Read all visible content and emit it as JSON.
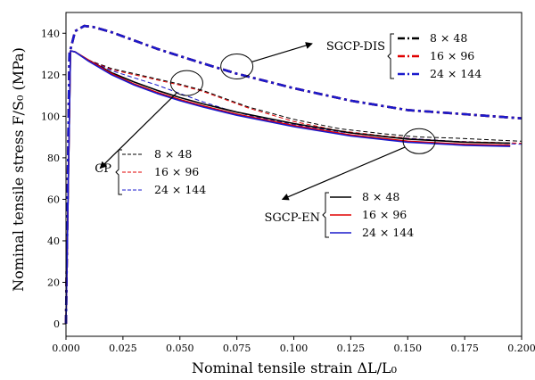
{
  "chart_data": {
    "type": "line",
    "xlabel": "Nominal tensile strain ΔL/L₀",
    "ylabel": "Nominal tensile stress F/S₀ (MPa)",
    "xlim": [
      0.0,
      0.2
    ],
    "ylim": [
      -6,
      150
    ],
    "x_ticks": [
      "0.000",
      "0.025",
      "0.050",
      "0.075",
      "0.100",
      "0.125",
      "0.150",
      "0.175",
      "0.200"
    ],
    "y_ticks": [
      "0",
      "20",
      "40",
      "60",
      "80",
      "100",
      "120",
      "140"
    ],
    "grid": false,
    "groups": [
      {
        "label": "SGCP-DIS",
        "linestyle": "dashdot"
      },
      {
        "label": "CP",
        "linestyle": "dashed"
      },
      {
        "label": "SGCP-EN",
        "linestyle": "solid"
      }
    ],
    "series": [
      {
        "name": "8 × 48",
        "group": "SGCP-DIS",
        "color": "#000000",
        "x": [
          0,
          0.0015,
          0.004,
          0.008,
          0.012,
          0.02,
          0.03,
          0.04,
          0.05,
          0.06,
          0.075,
          0.1,
          0.125,
          0.15,
          0.175,
          0.2
        ],
        "y": [
          0,
          130,
          141,
          143.5,
          143,
          140.5,
          136.5,
          132.5,
          129,
          125.5,
          120.5,
          113.5,
          107.5,
          103,
          101,
          99
        ]
      },
      {
        "name": "16 × 96",
        "group": "SGCP-DIS",
        "color": "#e00000",
        "x": [
          0,
          0.0015,
          0.004,
          0.008,
          0.012,
          0.02,
          0.03,
          0.04,
          0.05,
          0.06,
          0.075,
          0.1,
          0.125,
          0.15,
          0.175,
          0.2
        ],
        "y": [
          0,
          130,
          141,
          143.5,
          143,
          140.5,
          136.5,
          132.5,
          129,
          125.5,
          120.5,
          113.5,
          107.5,
          103,
          101,
          99
        ]
      },
      {
        "name": "24 × 144",
        "group": "SGCP-DIS",
        "color": "#1a1acc",
        "x": [
          0,
          0.0015,
          0.004,
          0.008,
          0.012,
          0.02,
          0.03,
          0.04,
          0.05,
          0.06,
          0.075,
          0.1,
          0.125,
          0.15,
          0.175,
          0.2
        ],
        "y": [
          0,
          130,
          141,
          143.5,
          143,
          140.5,
          136.5,
          132.5,
          129,
          125.5,
          120.5,
          113.5,
          107.5,
          103,
          101,
          99
        ]
      },
      {
        "name": "8 × 48",
        "group": "CP",
        "color": "#000000",
        "x": [
          0,
          0.002,
          0.004,
          0.01,
          0.02,
          0.03,
          0.04,
          0.05,
          0.06,
          0.07,
          0.08,
          0.1,
          0.12,
          0.14,
          0.155,
          0.17,
          0.2
        ],
        "y": [
          0,
          131.5,
          131,
          127,
          123,
          120.5,
          118,
          115.5,
          112.5,
          108.5,
          104.5,
          98.5,
          94,
          91.5,
          90,
          89.5,
          88
        ]
      },
      {
        "name": "16 × 96",
        "group": "CP",
        "color": "#e00000",
        "x": [
          0,
          0.002,
          0.004,
          0.01,
          0.02,
          0.03,
          0.04,
          0.05,
          0.06,
          0.07,
          0.08,
          0.1,
          0.12,
          0.14,
          0.155,
          0.17,
          0.2
        ],
        "y": [
          0,
          131.5,
          131,
          127,
          122.5,
          120,
          117.5,
          115,
          112,
          108,
          104,
          97.5,
          93,
          90.5,
          89,
          88,
          87
        ]
      },
      {
        "name": "24 × 144",
        "group": "CP",
        "color": "#1a1acc",
        "x": [
          0,
          0.002,
          0.004,
          0.01,
          0.02,
          0.03,
          0.04,
          0.05,
          0.06,
          0.07,
          0.08,
          0.1,
          0.12,
          0.14,
          0.155,
          0.17,
          0.2
        ],
        "y": [
          0,
          131.5,
          131,
          127,
          122,
          118.5,
          115,
          111,
          107,
          103.5,
          100.5,
          96,
          92.5,
          90,
          89,
          88,
          86.5
        ]
      },
      {
        "name": "8 × 48",
        "group": "SGCP-EN",
        "color": "#000000",
        "x": [
          0,
          0.002,
          0.004,
          0.01,
          0.02,
          0.03,
          0.04,
          0.05,
          0.06,
          0.075,
          0.1,
          0.125,
          0.15,
          0.175,
          0.195
        ],
        "y": [
          0,
          131.5,
          131,
          127,
          121,
          116.5,
          112.5,
          109,
          106,
          102,
          96.5,
          92,
          89,
          87.5,
          87
        ]
      },
      {
        "name": "16 × 96",
        "group": "SGCP-EN",
        "color": "#e00000",
        "x": [
          0,
          0.002,
          0.004,
          0.01,
          0.02,
          0.03,
          0.04,
          0.05,
          0.06,
          0.075,
          0.1,
          0.125,
          0.15,
          0.175,
          0.195
        ],
        "y": [
          0,
          131.5,
          131,
          127,
          120.5,
          115.5,
          111.5,
          108,
          105,
          101,
          95.5,
          91,
          88,
          86.5,
          86
        ]
      },
      {
        "name": "24 × 144",
        "group": "SGCP-EN",
        "color": "#1a1acc",
        "x": [
          0,
          0.002,
          0.004,
          0.01,
          0.02,
          0.03,
          0.04,
          0.05,
          0.06,
          0.075,
          0.1,
          0.125,
          0.15,
          0.175,
          0.195
        ],
        "y": [
          0,
          131.5,
          131,
          126.5,
          120,
          115,
          111,
          107.5,
          104.5,
          100.5,
          95,
          90.5,
          87.5,
          86,
          85.5
        ]
      }
    ],
    "annotations": [
      {
        "label": "SGCP-DIS",
        "circle_at": [
          0.075,
          124
        ],
        "text_at": [
          0.108,
          135
        ]
      },
      {
        "label": "CP",
        "circle_at": [
          0.053,
          116
        ],
        "text_at": [
          0.015,
          75
        ]
      },
      {
        "label": "SGCP-EN",
        "circle_at": [
          0.155,
          88
        ],
        "text_at": [
          0.095,
          60
        ]
      }
    ]
  }
}
